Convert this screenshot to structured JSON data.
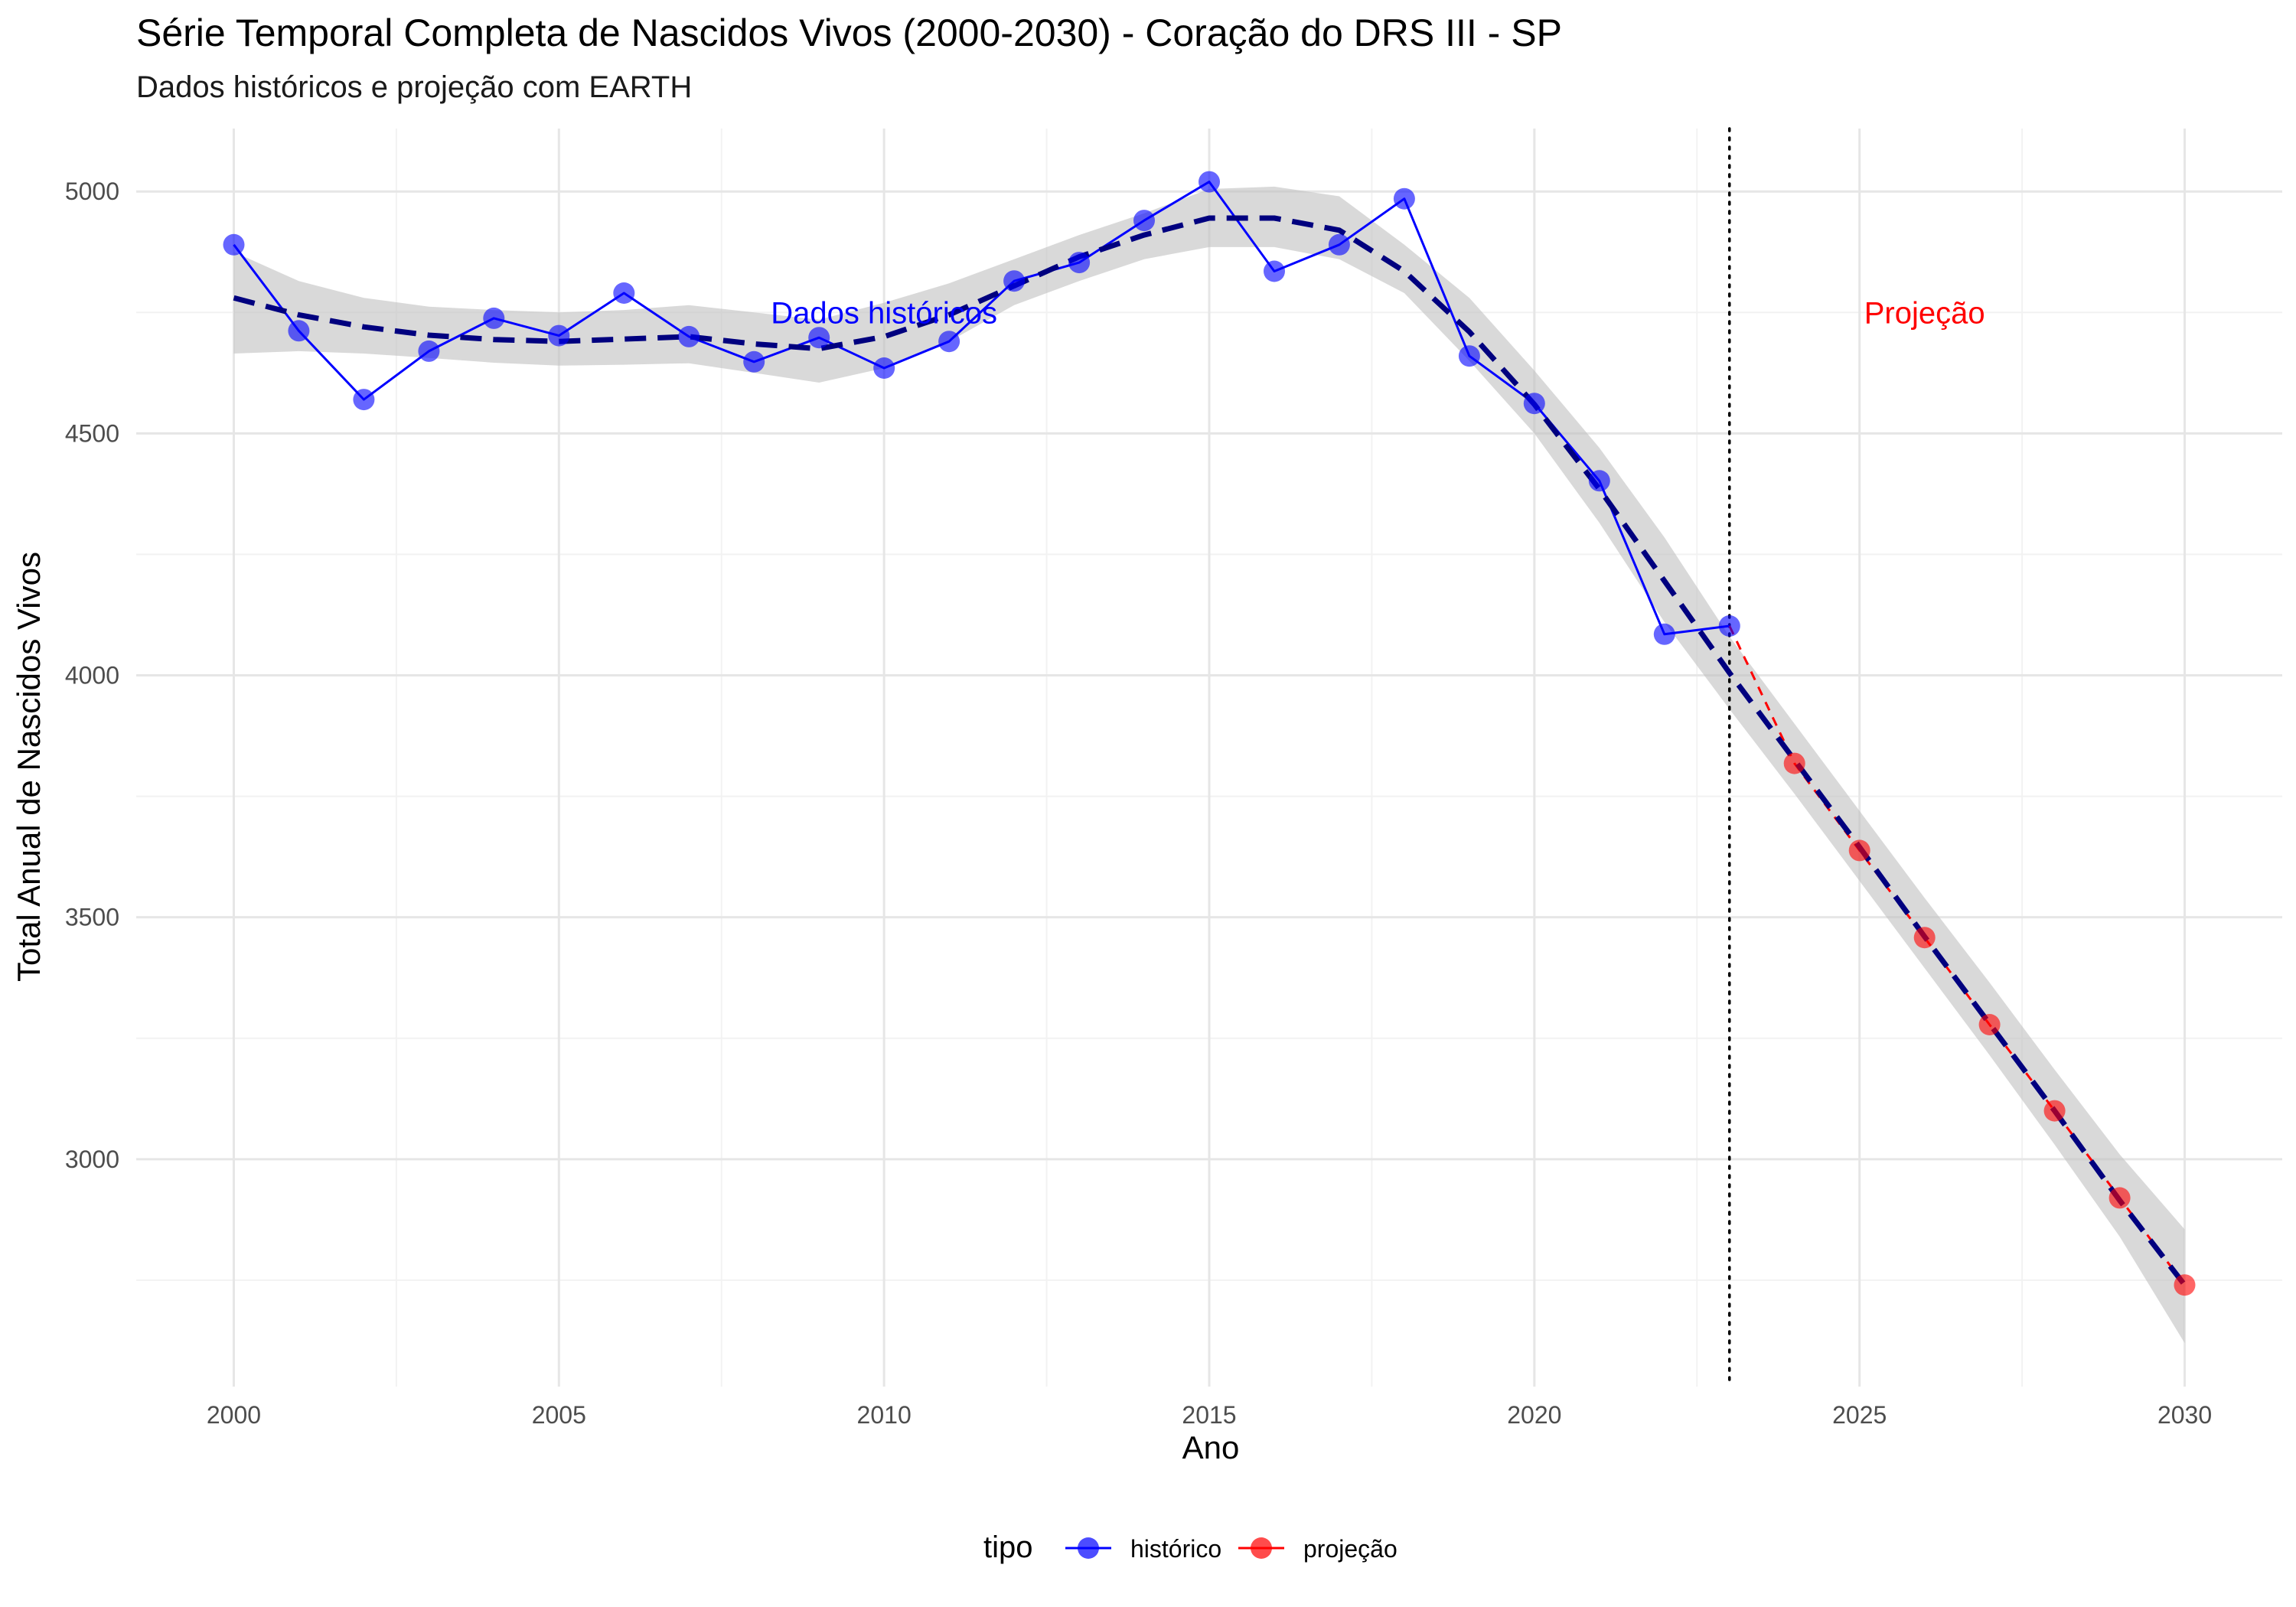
{
  "chart_data": {
    "type": "line",
    "title": "Série Temporal Completa de Nascidos Vivos (2000-2030) -  Coração do DRS III - SP",
    "subtitle": "Dados históricos e projeção com EARTH",
    "xlabel": "Ano",
    "ylabel": "Total Anual de Nascidos Vivos",
    "xlim": [
      1998.5,
      2031.5
    ],
    "ylim": [
      2530,
      5130
    ],
    "x_ticks": [
      2000,
      2005,
      2010,
      2015,
      2020,
      2025,
      2030
    ],
    "y_ticks": [
      3000,
      3500,
      4000,
      4500,
      5000
    ],
    "grid": true,
    "legend": {
      "title": "tipo",
      "position": "bottom",
      "entries": [
        {
          "label": "histórico",
          "color": "#0000FF"
        },
        {
          "label": "projeção",
          "color": "#FF0000"
        }
      ]
    },
    "split_year": 2023,
    "annotations": [
      {
        "text": "Dados históricos",
        "x": 2010,
        "y": 4750,
        "color": "#0000FF"
      },
      {
        "text": "Projeção",
        "x": 2026,
        "y": 4750,
        "color": "#FF0000"
      }
    ],
    "series": [
      {
        "name": "histórico",
        "color": "#0000FF",
        "x": [
          2000,
          2001,
          2002,
          2003,
          2004,
          2005,
          2006,
          2007,
          2008,
          2009,
          2010,
          2011,
          2012,
          2013,
          2014,
          2015,
          2016,
          2017,
          2018,
          2019,
          2020,
          2021,
          2022,
          2023
        ],
        "values": [
          4890,
          4712,
          4570,
          4670,
          4738,
          4702,
          4790,
          4700,
          4648,
          4698,
          4635,
          4690,
          4815,
          4853,
          4940,
          5020,
          4835,
          4890,
          4985,
          4660,
          4562,
          4402,
          4085,
          4102
        ]
      },
      {
        "name": "projeção",
        "color": "#FF0000",
        "x": [
          2023,
          2024,
          2025,
          2026,
          2027,
          2028,
          2029,
          2030
        ],
        "values": [
          4102,
          3818,
          3638,
          3458,
          3278,
          3100,
          2920,
          2740
        ]
      }
    ],
    "trend": {
      "color": "#00007F",
      "style": "dashed",
      "x": [
        2000,
        2001,
        2002,
        2003,
        2004,
        2005,
        2006,
        2007,
        2008,
        2009,
        2010,
        2011,
        2012,
        2013,
        2014,
        2015,
        2016,
        2017,
        2018,
        2019,
        2020,
        2021,
        2022,
        2023,
        2024,
        2025,
        2026,
        2027,
        2028,
        2029,
        2030
      ],
      "values": [
        4780,
        4745,
        4720,
        4703,
        4694,
        4690,
        4695,
        4700,
        4685,
        4675,
        4700,
        4745,
        4805,
        4865,
        4910,
        4945,
        4945,
        4920,
        4835,
        4710,
        4560,
        4385,
        4195,
        4005,
        3825,
        3645,
        3460,
        3280,
        3100,
        2915,
        2740
      ],
      "lower": [
        4665,
        4670,
        4665,
        4656,
        4646,
        4640,
        4642,
        4645,
        4625,
        4605,
        4635,
        4690,
        4765,
        4815,
        4860,
        4885,
        4885,
        4860,
        4790,
        4650,
        4500,
        4315,
        4110,
        3930,
        3755,
        3575,
        3395,
        3215,
        3030,
        2840,
        2620
      ],
      "upper": [
        4875,
        4815,
        4780,
        4762,
        4755,
        4750,
        4755,
        4765,
        4750,
        4735,
        4770,
        4810,
        4860,
        4910,
        4955,
        5005,
        5010,
        4990,
        4890,
        4780,
        4630,
        4470,
        4285,
        4080,
        3900,
        3720,
        3540,
        3365,
        3185,
        3010,
        2855
      ]
    }
  }
}
